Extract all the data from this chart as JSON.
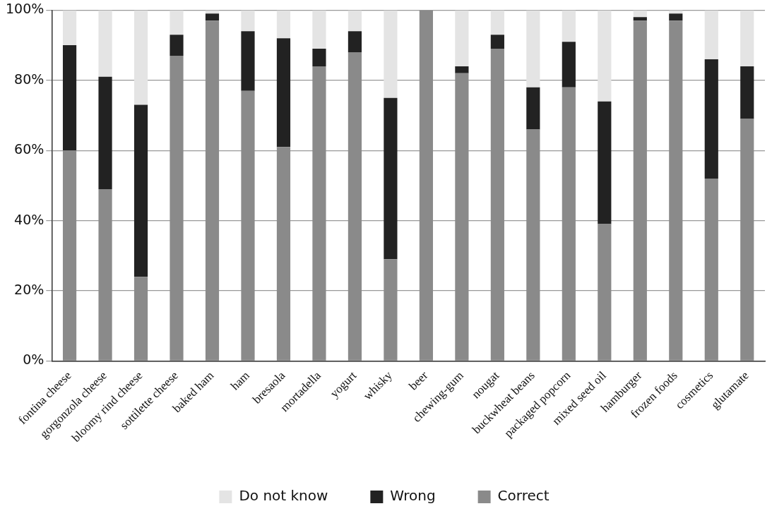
{
  "chart_data": {
    "type": "bar",
    "stacked": true,
    "categories": [
      "fontina cheese",
      "gorgonzola cheese",
      "bloomy rind cheese",
      "sottilette cheese",
      "baked ham",
      "ham",
      "bresaola",
      "mortadella",
      "yogurt",
      "whisky",
      "beer",
      "chewing-gum",
      "nougat",
      "buckwheat beans",
      "packaged popcorn",
      "mixed seed oil",
      "hamburger",
      "frozen foods",
      "cosmetics",
      "glutamate"
    ],
    "series": [
      {
        "name": "Correct",
        "color": "#8a8a8a",
        "values": [
          60,
          49,
          24,
          87,
          97,
          77,
          61,
          84,
          88,
          29,
          100,
          82,
          89,
          66,
          78,
          39,
          97,
          97,
          52,
          69
        ]
      },
      {
        "name": "Wrong",
        "color": "#222222",
        "values": [
          30,
          32,
          49,
          6,
          2,
          17,
          31,
          5,
          6,
          46,
          0,
          2,
          4,
          12,
          13,
          35,
          1,
          2,
          34,
          15
        ]
      },
      {
        "name": "Do not know",
        "color": "#e4e4e4",
        "values": [
          10,
          19,
          27,
          7,
          1,
          6,
          8,
          11,
          6,
          25,
          0,
          16,
          7,
          22,
          9,
          26,
          2,
          1,
          14,
          16
        ]
      }
    ],
    "ylim": [
      0,
      100
    ],
    "yticks": [
      {
        "value": 0,
        "label": "0%"
      },
      {
        "value": 20,
        "label": "20%"
      },
      {
        "value": 40,
        "label": "40%"
      },
      {
        "value": 60,
        "label": "60%"
      },
      {
        "value": 80,
        "label": "80%"
      },
      {
        "value": 100,
        "label": "100%"
      }
    ],
    "grid": "y",
    "legend": "bottom"
  }
}
